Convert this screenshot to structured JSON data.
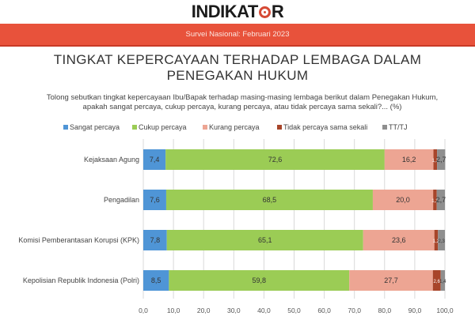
{
  "header": {
    "logo_text": "INDIKAT",
    "logo_text_end": "R",
    "banner_text": "Survei Nasional: Februari 2023"
  },
  "title": "TINGKAT KEPERCAYAAN TERHADAP LEMBAGA DALAM PENEGAKAN HUKUM",
  "question": "Tolong sebutkan tingkat kepercayaan Ibu/Bapak terhadap masing-masing lembaga berikut dalam Penegakan Hukum, apakah sangat percaya, cukup percaya, kurang percaya, atau tidak percaya sama sekali?... (%)",
  "chart_data": {
    "type": "bar",
    "orientation": "horizontal",
    "stacked": true,
    "categories": [
      "Kejaksaan Agung",
      "Pengadilan",
      "Komisi Pemberantasan Korupsi (KPK)",
      "Kepolisian Republik Indonesia (Polri)"
    ],
    "series": [
      {
        "name": "Sangat percaya",
        "color": "#4f95d6",
        "values": [
          7.4,
          7.6,
          7.8,
          8.5
        ],
        "labels": [
          "7,4",
          "7,6",
          "7,8",
          "8,5"
        ]
      },
      {
        "name": "Cukup percaya",
        "color": "#9bcc55",
        "values": [
          72.6,
          68.5,
          65.1,
          59.8
        ],
        "labels": [
          "72,6",
          "68,5",
          "65,1",
          "59,8"
        ]
      },
      {
        "name": "Kurang percaya",
        "color": "#eda593",
        "values": [
          16.2,
          20.0,
          23.6,
          27.7
        ],
        "labels": [
          "16,2",
          "20,0",
          "23,6",
          "27,7"
        ]
      },
      {
        "name": "Tidak percaya sama sekali",
        "color": "#a8452a",
        "values": [
          1.2,
          1.2,
          1.2,
          2.6
        ],
        "labels": [
          "1,2",
          "1,2",
          "1,2",
          "2,6"
        ]
      },
      {
        "name": "TT/TJ",
        "color": "#8f8f8f",
        "values": [
          2.7,
          2.7,
          2.3,
          1.4
        ],
        "labels": [
          "2,7",
          "2,7",
          "2,3",
          "1,4"
        ]
      }
    ],
    "xlim": [
      0,
      100
    ],
    "xticks": [
      0,
      10,
      20,
      30,
      40,
      50,
      60,
      70,
      80,
      90,
      100
    ],
    "xtick_labels": [
      "0,0",
      "10,0",
      "20,0",
      "30,0",
      "40,0",
      "50,0",
      "60,0",
      "70,0",
      "80,0",
      "90,0",
      "100,0"
    ],
    "grid": true,
    "legend_position": "top-left"
  }
}
